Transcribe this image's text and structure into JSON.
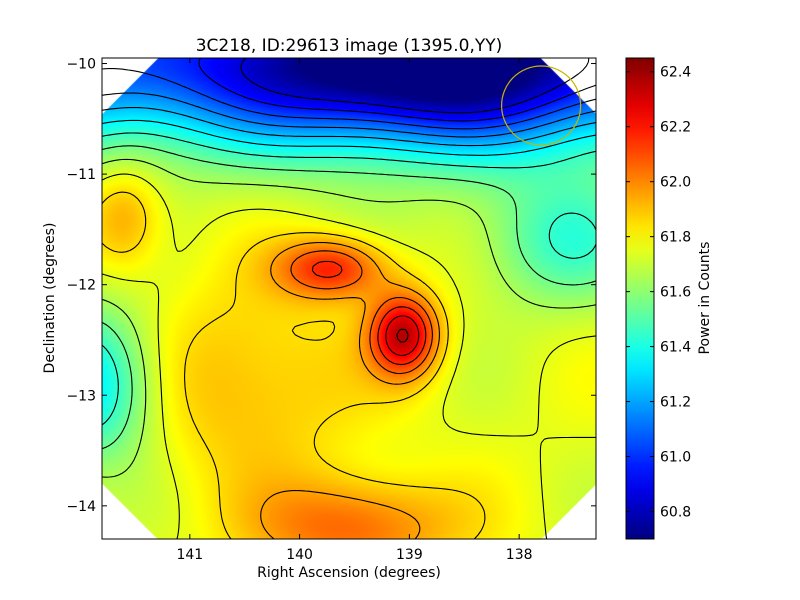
{
  "chart_data": {
    "type": "heatmap",
    "title": "3C218, ID:29613 image (1395.0,YY)",
    "xlabel": "Right Ascension (degrees)",
    "ylabel": "Declination (degrees)",
    "xlim": [
      141.8,
      137.3
    ],
    "ylim": [
      -14.3,
      -9.95
    ],
    "x_ticks": [
      141,
      140,
      139,
      138
    ],
    "y_ticks": [
      -10,
      -11,
      -12,
      -13,
      -14
    ],
    "x_tick_labels": [
      "141",
      "140",
      "139",
      "138"
    ],
    "y_tick_labels": [
      "−10",
      "−11",
      "−12",
      "−13",
      "−14"
    ],
    "colorbar": {
      "label": "Power in Counts",
      "min": 60.7,
      "max": 62.45,
      "ticks": [
        60.8,
        61.0,
        61.2,
        61.4,
        61.6,
        61.8,
        62.0,
        62.2,
        62.4
      ],
      "tick_labels": [
        "60.8",
        "61.0",
        "61.2",
        "61.4",
        "61.6",
        "61.8",
        "62.0",
        "62.2",
        "62.4"
      ],
      "colormap": "jet"
    },
    "features": [
      {
        "kind": "minimum",
        "ra": 138.9,
        "dec": -10.0,
        "value": 60.7
      },
      {
        "kind": "maximum",
        "ra": 139.05,
        "dec": -12.45,
        "value": 62.45
      },
      {
        "kind": "local-maximum",
        "ra": 139.7,
        "dec": -11.85,
        "value": 62.2
      },
      {
        "kind": "local-maximum",
        "ra": 139.5,
        "dec": -14.25,
        "value": 62.1
      },
      {
        "kind": "local-minimum",
        "ra": 141.8,
        "dec": -12.9,
        "value": 61.3
      }
    ],
    "beam_circle": {
      "ra": 137.8,
      "dec": -10.38,
      "radius_deg": 0.36,
      "color": "#c8b400"
    },
    "contour_color": "#000000"
  }
}
